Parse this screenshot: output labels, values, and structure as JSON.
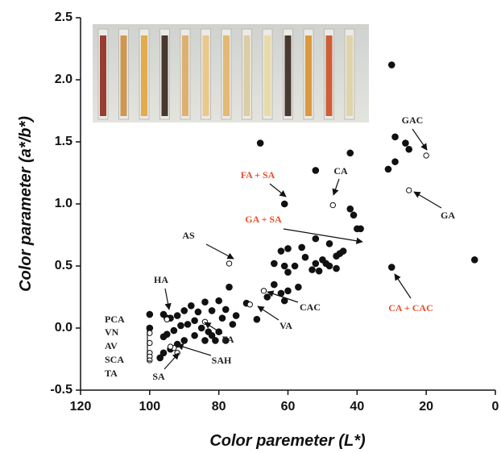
{
  "chart_data": {
    "type": "scatter",
    "x_label": "Color paremeter (L*)",
    "y_label": "Color parameter (a*/b*)",
    "xlim": [
      120,
      0
    ],
    "ylim": [
      -0.5,
      2.5
    ],
    "xticks": [
      120,
      100,
      80,
      60,
      40,
      20,
      0
    ],
    "yticks": [
      2.5,
      {
        "value": 2,
        "label": "2.0"
      },
      1.5,
      {
        "value": 1,
        "label": "1.0"
      },
      0.5,
      {
        "value": 0,
        "label": "0.0"
      },
      -0.5
    ],
    "series": [
      {
        "marker": "filled",
        "color": "#111111",
        "x": [
          30,
          68,
          29,
          26,
          25,
          29,
          31,
          42,
          52,
          61,
          42,
          41,
          40,
          39,
          30,
          6,
          52,
          48,
          56,
          60,
          62,
          46,
          55,
          50,
          45,
          44,
          52,
          49,
          58,
          53,
          51,
          48,
          61,
          64,
          60,
          46,
          57,
          60,
          64,
          62,
          61,
          66,
          72,
          69,
          77,
          80,
          84,
          82,
          78,
          79,
          75,
          76,
          86,
          88,
          90,
          92,
          94,
          87,
          89,
          91,
          85,
          83,
          80,
          82,
          84,
          87,
          93,
          95,
          96,
          90,
          92,
          94,
          96,
          97,
          78,
          81,
          100,
          96,
          95,
          100
        ],
        "values": [
          2.12,
          1.49,
          1.54,
          1.49,
          1.44,
          1.34,
          1.28,
          1.41,
          1.27,
          1.0,
          0.96,
          0.91,
          0.8,
          0.8,
          0.49,
          0.55,
          0.72,
          0.68,
          0.65,
          0.64,
          0.62,
          0.58,
          0.57,
          0.55,
          0.6,
          0.62,
          0.52,
          0.52,
          0.5,
          0.47,
          0.46,
          0.5,
          0.5,
          0.52,
          0.45,
          0.48,
          0.33,
          0.3,
          0.35,
          0.28,
          0.22,
          0.25,
          0.2,
          0.07,
          0.33,
          0.22,
          0.21,
          0.14,
          0.15,
          0.08,
          0.1,
          0.03,
          0.13,
          0.18,
          0.14,
          0.1,
          0.08,
          0.06,
          0.03,
          0.02,
          0.0,
          -0.03,
          -0.03,
          -0.06,
          -0.1,
          -0.06,
          -0.02,
          -0.05,
          -0.07,
          -0.1,
          -0.13,
          -0.17,
          -0.2,
          -0.24,
          -0.1,
          -0.1,
          0.11,
          0.11,
          0.08,
          0.0
        ]
      },
      {
        "marker": "open",
        "color": "#111111",
        "x": [
          20,
          25,
          47,
          77,
          67,
          71,
          84,
          95,
          93,
          92,
          100,
          100,
          100,
          100,
          100,
          94
        ],
        "values": [
          1.39,
          1.11,
          0.99,
          0.52,
          0.3,
          0.19,
          0.05,
          0.07,
          -0.16,
          -0.2,
          -0.04,
          -0.12,
          -0.2,
          -0.23,
          -0.26,
          -0.15
        ]
      }
    ],
    "annotations": [
      {
        "text": "GAC",
        "color": "#222222"
      },
      {
        "text": "CA",
        "color": "#222222"
      },
      {
        "text": "FA + SA",
        "color": "#e8502a"
      },
      {
        "text": "GA",
        "color": "#222222"
      },
      {
        "text": "GA + SA",
        "color": "#e8502a"
      },
      {
        "text": "AS",
        "color": "#222222"
      },
      {
        "text": "HA",
        "color": "#222222"
      },
      {
        "text": "CAC",
        "color": "#222222"
      },
      {
        "text": "VA",
        "color": "#222222"
      },
      {
        "text": "FA",
        "color": "#222222"
      },
      {
        "text": "PCA",
        "color": "#222222"
      },
      {
        "text": "VN",
        "color": "#222222"
      },
      {
        "text": "AV",
        "color": "#222222"
      },
      {
        "text": "SCA",
        "color": "#222222"
      },
      {
        "text": "TA",
        "color": "#222222"
      },
      {
        "text": "SAH",
        "color": "#222222"
      },
      {
        "text": "SA",
        "color": "#222222"
      },
      {
        "text": "CA + CAC",
        "color": "#e8502a"
      }
    ]
  }
}
